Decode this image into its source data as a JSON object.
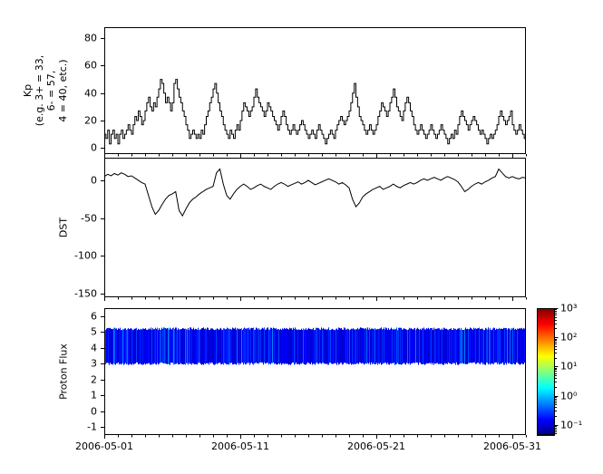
{
  "figure": {
    "bg": "#ffffff",
    "frame_color": "#000000",
    "line_color": "#000000"
  },
  "x_axis": {
    "tick_labels": [
      "2006-05-01",
      "2006-05-11",
      "2006-05-21",
      "2006-05-31"
    ],
    "tick_days": [
      0,
      10,
      20,
      30
    ],
    "range_days": [
      0,
      31
    ]
  },
  "kp_panel": {
    "ylabel_lines": [
      "Kp",
      "(e.g. 3+ = 33,",
      "6- = 57,",
      "4 = 40, etc.)"
    ],
    "ytick_labels": [
      "0",
      "20",
      "40",
      "60",
      "80"
    ]
  },
  "dst_panel": {
    "ylabel": "DST",
    "ytick_labels": [
      "0",
      "-50",
      "-100",
      "-150"
    ]
  },
  "proton_panel": {
    "ylabel": "Proton Flux",
    "ytick_labels": [
      "-1",
      "0",
      "1",
      "2",
      "3",
      "4",
      "5",
      "6"
    ]
  },
  "colorbar": {
    "tick_labels": [
      "10³",
      "10²",
      "10¹",
      "10⁰",
      "10⁻¹"
    ],
    "colormap": "jet"
  },
  "chart_data": [
    {
      "type": "line",
      "name": "Kp",
      "style": "steps",
      "title": "",
      "xlabel": "",
      "ylabel": "Kp (e.g. 3+ = 33, 6- = 57, 4 = 40, etc.)",
      "x_start": "2006-05-01",
      "x_end": "2006-05-31",
      "cadence_hours": 3,
      "ylim": [
        -4.4,
        88
      ],
      "yticks": [
        0,
        20,
        40,
        60,
        80
      ],
      "values": [
        10,
        7,
        13,
        3,
        10,
        13,
        7,
        10,
        3,
        10,
        13,
        7,
        10,
        13,
        17,
        13,
        10,
        17,
        23,
        20,
        27,
        23,
        17,
        20,
        27,
        33,
        37,
        30,
        27,
        33,
        30,
        37,
        43,
        50,
        47,
        40,
        33,
        37,
        33,
        27,
        33,
        47,
        50,
        43,
        37,
        33,
        27,
        23,
        17,
        13,
        7,
        10,
        13,
        10,
        7,
        10,
        7,
        13,
        10,
        17,
        23,
        27,
        33,
        37,
        43,
        47,
        40,
        33,
        27,
        23,
        17,
        13,
        10,
        7,
        13,
        10,
        7,
        13,
        17,
        13,
        20,
        27,
        33,
        30,
        27,
        23,
        27,
        30,
        37,
        43,
        37,
        33,
        30,
        27,
        23,
        27,
        33,
        30,
        27,
        23,
        20,
        17,
        13,
        17,
        23,
        27,
        23,
        17,
        13,
        10,
        13,
        17,
        13,
        10,
        13,
        17,
        20,
        17,
        13,
        10,
        7,
        10,
        13,
        10,
        7,
        13,
        17,
        13,
        10,
        7,
        3,
        7,
        10,
        13,
        10,
        7,
        13,
        17,
        20,
        23,
        20,
        17,
        20,
        23,
        27,
        33,
        40,
        47,
        37,
        30,
        23,
        20,
        17,
        13,
        10,
        13,
        17,
        13,
        10,
        13,
        17,
        23,
        27,
        33,
        30,
        27,
        23,
        27,
        33,
        37,
        43,
        37,
        30,
        27,
        23,
        20,
        27,
        33,
        37,
        33,
        27,
        23,
        17,
        13,
        10,
        13,
        17,
        13,
        10,
        7,
        10,
        13,
        17,
        13,
        10,
        7,
        10,
        13,
        17,
        13,
        10,
        7,
        3,
        7,
        10,
        7,
        13,
        10,
        17,
        23,
        27,
        23,
        20,
        17,
        13,
        17,
        20,
        23,
        20,
        17,
        13,
        10,
        13,
        10,
        7,
        3,
        7,
        10,
        7,
        10,
        13,
        17,
        23,
        27,
        23,
        20,
        17,
        20,
        23,
        27,
        17,
        13,
        10,
        13,
        17,
        13,
        10,
        7
      ]
    },
    {
      "type": "line",
      "name": "DST",
      "title": "",
      "xlabel": "",
      "ylabel": "DST",
      "x_start": "2006-05-01",
      "x_end": "2006-05-31",
      "cadence_hours": 6,
      "ylim": [
        -155,
        30
      ],
      "yticks": [
        0,
        -50,
        -100,
        -150
      ],
      "values": [
        5,
        8,
        6,
        9,
        7,
        10,
        8,
        5,
        6,
        3,
        0,
        -3,
        -5,
        -20,
        -35,
        -45,
        -40,
        -32,
        -25,
        -20,
        -18,
        -15,
        -40,
        -47,
        -38,
        -30,
        -25,
        -22,
        -18,
        -15,
        -12,
        -10,
        -8,
        10,
        15,
        -5,
        -20,
        -25,
        -18,
        -12,
        -8,
        -5,
        -8,
        -12,
        -10,
        -7,
        -5,
        -8,
        -10,
        -12,
        -8,
        -5,
        -3,
        -5,
        -8,
        -6,
        -4,
        -2,
        -5,
        -3,
        0,
        -3,
        -6,
        -4,
        -2,
        0,
        2,
        0,
        -2,
        -5,
        -3,
        -6,
        -10,
        -25,
        -35,
        -30,
        -22,
        -18,
        -15,
        -12,
        -10,
        -8,
        -12,
        -10,
        -8,
        -5,
        -8,
        -10,
        -7,
        -5,
        -3,
        -5,
        -3,
        0,
        2,
        0,
        2,
        4,
        2,
        0,
        3,
        5,
        3,
        1,
        -2,
        -8,
        -15,
        -12,
        -8,
        -5,
        -3,
        -5,
        -2,
        0,
        3,
        5,
        15,
        10,
        5,
        3,
        5,
        3,
        2,
        4,
        3
      ]
    },
    {
      "type": "heatmap",
      "name": "Proton Flux",
      "title": "",
      "xlabel": "",
      "ylabel": "Proton Flux",
      "x_start": "2006-05-01",
      "x_end": "2006-05-31",
      "ylim": [
        -1.5,
        6.5
      ],
      "yticks": [
        -1,
        0,
        1,
        2,
        3,
        4,
        5,
        6
      ],
      "band": {
        "y_min": 3.0,
        "y_max": 5.2
      },
      "flux_log10_min": -1.0,
      "flux_log10_max": -0.25,
      "noise_seed": 7,
      "colorbar": {
        "scale": "log10",
        "range": [
          -1.35,
          3
        ],
        "tick_values": [
          3,
          2,
          1,
          0,
          -1
        ],
        "colormap": "jet"
      }
    }
  ]
}
